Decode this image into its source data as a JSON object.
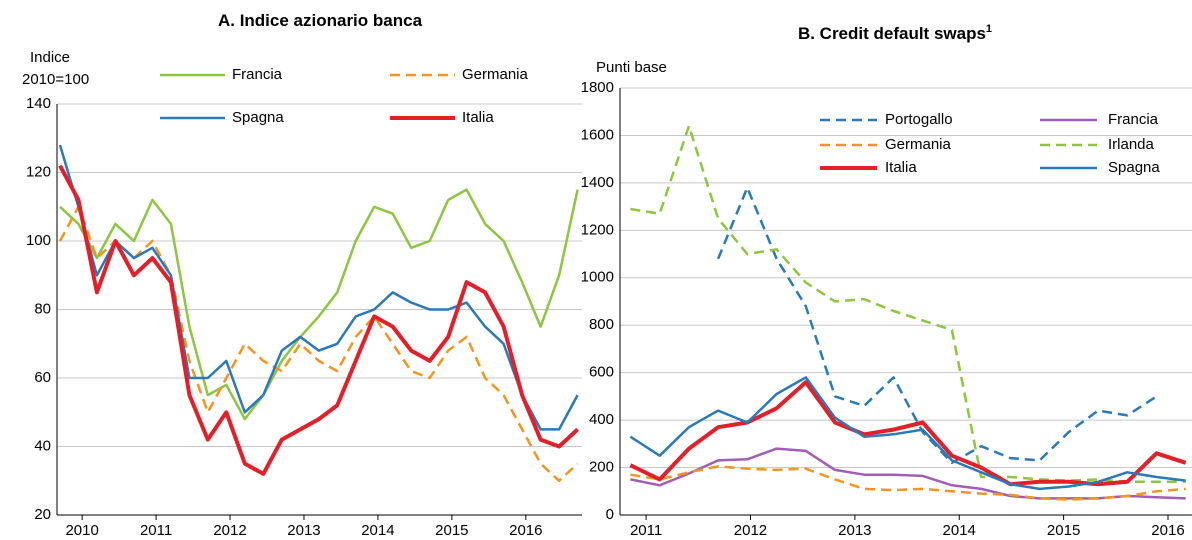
{
  "chart_data": [
    {
      "type": "line",
      "title": "A. Indice azionario banca",
      "y_label": [
        "Indice",
        "2010=100"
      ],
      "x": [
        2009.7,
        2009.95,
        2010.2,
        2010.45,
        2010.7,
        2010.95,
        2011.2,
        2011.45,
        2011.7,
        2011.95,
        2012.2,
        2012.45,
        2012.7,
        2012.95,
        2013.2,
        2013.45,
        2013.7,
        2013.95,
        2014.2,
        2014.45,
        2014.7,
        2014.95,
        2015.2,
        2015.45,
        2015.7,
        2015.95,
        2016.2,
        2016.45,
        2016.7
      ],
      "series": [
        {
          "name": "Francia",
          "color": "#8dc63f",
          "dash": false,
          "values": [
            110,
            105,
            95,
            105,
            100,
            112,
            105,
            75,
            55,
            58,
            48,
            55,
            65,
            72,
            78,
            85,
            100,
            110,
            108,
            98,
            100,
            112,
            115,
            105,
            100,
            88,
            75,
            90,
            115
          ]
        },
        {
          "name": "Germania",
          "color": "#f7941d",
          "dash": true,
          "values": [
            100,
            110,
            95,
            100,
            95,
            100,
            90,
            65,
            50,
            60,
            70,
            65,
            62,
            70,
            65,
            62,
            72,
            78,
            70,
            62,
            60,
            68,
            72,
            60,
            55,
            45,
            35,
            30,
            35
          ]
        },
        {
          "name": "Spagna",
          "color": "#2a7ab8",
          "dash": false,
          "values": [
            128,
            110,
            90,
            100,
            95,
            98,
            90,
            60,
            60,
            65,
            50,
            55,
            68,
            72,
            68,
            70,
            78,
            80,
            85,
            82,
            80,
            80,
            82,
            75,
            70,
            55,
            45,
            45,
            55
          ]
        },
        {
          "name": "Italia",
          "color": "#e3202a",
          "dash": false,
          "values": [
            122,
            112,
            85,
            100,
            90,
            95,
            88,
            55,
            42,
            50,
            35,
            32,
            42,
            45,
            48,
            52,
            65,
            78,
            75,
            68,
            65,
            72,
            88,
            85,
            75,
            55,
            42,
            40,
            45
          ]
        }
      ],
      "xlim": [
        2009.66,
        2016.76
      ],
      "xticks": [
        2010,
        2011,
        2012,
        2013,
        2014,
        2015,
        2016
      ],
      "ylim": [
        20,
        140
      ],
      "yticks": [
        20,
        40,
        60,
        80,
        100,
        120,
        140
      ],
      "grid": true
    },
    {
      "type": "line",
      "title": "B. Credit default swaps",
      "title_superscript": "1",
      "y_label": [
        "Punti base"
      ],
      "x": [
        2010.85,
        2011.13,
        2011.41,
        2011.69,
        2011.97,
        2012.25,
        2012.53,
        2012.81,
        2013.09,
        2013.37,
        2013.65,
        2013.93,
        2014.21,
        2014.49,
        2014.77,
        2015.05,
        2015.33,
        2015.61,
        2015.89,
        2016.17
      ],
      "series": [
        {
          "name": "Portogallo",
          "color": "#2a7ab8",
          "dash": true,
          "values": [
            null,
            null,
            null,
            1080,
            1380,
            1080,
            880,
            500,
            460,
            580,
            350,
            220,
            290,
            240,
            230,
            350,
            440,
            420,
            500,
            null
          ]
        },
        {
          "name": "Francia",
          "color": "#a05fb5",
          "dash": false,
          "values": [
            150,
            125,
            175,
            230,
            235,
            280,
            270,
            190,
            170,
            170,
            165,
            125,
            110,
            80,
            70,
            70,
            70,
            80,
            75,
            70
          ]
        },
        {
          "name": "Germania",
          "color": "#f7941d",
          "dash": true,
          "values": [
            170,
            150,
            180,
            205,
            195,
            190,
            195,
            150,
            110,
            105,
            110,
            100,
            90,
            85,
            70,
            65,
            70,
            80,
            100,
            110
          ]
        },
        {
          "name": "Irlanda",
          "color": "#8dc63f",
          "dash": true,
          "values": [
            1290,
            1270,
            1640,
            1250,
            1100,
            1120,
            980,
            900,
            910,
            860,
            820,
            780,
            160,
            160,
            150,
            145,
            150,
            140,
            140,
            140
          ]
        },
        {
          "name": "Italia",
          "color": "#e3202a",
          "dash": false,
          "values": [
            210,
            150,
            280,
            370,
            390,
            450,
            560,
            390,
            340,
            360,
            390,
            250,
            200,
            130,
            140,
            140,
            130,
            140,
            260,
            220
          ]
        },
        {
          "name": "Spagna",
          "color": "#2a7ab8",
          "dash": false,
          "values": [
            330,
            250,
            370,
            440,
            390,
            510,
            580,
            410,
            330,
            340,
            360,
            230,
            180,
            130,
            110,
            120,
            140,
            180,
            160,
            145
          ]
        }
      ],
      "xlim": [
        2010.75,
        2016.23
      ],
      "xticks": [
        2011,
        2012,
        2013,
        2014,
        2015,
        2016
      ],
      "ylim": [
        0,
        1800
      ],
      "yticks": [
        0,
        200,
        400,
        600,
        800,
        1000,
        1200,
        1400,
        1600,
        1800
      ],
      "grid": true
    }
  ]
}
